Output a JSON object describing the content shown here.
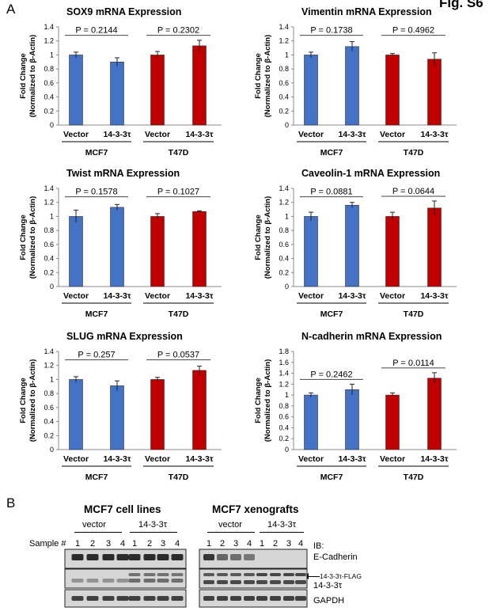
{
  "figure": {
    "panel_a": "A",
    "panel_b": "B",
    "corner_label": "Fig. S6"
  },
  "colors": {
    "mcf7": "#4472C4",
    "t47d": "#C00000"
  },
  "chart_data": [
    {
      "type": "bar",
      "title": "SOX9 mRNA Expression",
      "ylabel": [
        "Fold Change",
        "(Normalized to β-Actin)"
      ],
      "ylim": [
        0,
        1.4
      ],
      "yticks": [
        "0",
        "0.2",
        "0.4",
        "0.6",
        "0.8",
        "1",
        "1.2",
        "1.4"
      ],
      "categories": [
        "Vector",
        "14-3-3τ",
        "Vector",
        "14-3-3τ"
      ],
      "groups": [
        "MCF7",
        "T47D"
      ],
      "values": [
        1.0,
        0.9,
        1.0,
        1.13
      ],
      "errors": [
        0.04,
        0.06,
        0.05,
        0.08
      ],
      "pvalues": [
        "P = 0.2144",
        "P = 0.2302"
      ]
    },
    {
      "type": "bar",
      "title": "Vimentin mRNA Expression",
      "ylabel": [
        "Fold Change",
        "(Normalized to β-Actin)"
      ],
      "ylim": [
        0,
        1.4
      ],
      "yticks": [
        "0",
        "0.2",
        "0.4",
        "0.6",
        "0.8",
        "1",
        "1.2",
        "1.4"
      ],
      "categories": [
        "Vector",
        "14-3-3τ",
        "Vector",
        "14-3-3τ"
      ],
      "groups": [
        "MCF7",
        "T47D"
      ],
      "values": [
        1.0,
        1.12,
        1.0,
        0.94
      ],
      "errors": [
        0.04,
        0.07,
        0.02,
        0.09
      ],
      "pvalues": [
        "P = 0.1738",
        "P = 0.4962"
      ]
    },
    {
      "type": "bar",
      "title": "Twist mRNA Expression",
      "ylabel": [
        "Fold Change",
        "(Normalized to β-Actin)"
      ],
      "ylim": [
        0,
        1.4
      ],
      "yticks": [
        "0",
        "0.2",
        "0.4",
        "0.6",
        "0.8",
        "1",
        "1.2",
        "1.4"
      ],
      "categories": [
        "Vector",
        "14-3-3τ",
        "Vector",
        "14-3-3τ"
      ],
      "groups": [
        "MCF7",
        "T47D"
      ],
      "values": [
        1.0,
        1.13,
        1.0,
        1.07
      ],
      "errors": [
        0.09,
        0.04,
        0.04,
        0.01
      ],
      "pvalues": [
        "P = 0.1578",
        "P = 0.1027"
      ]
    },
    {
      "type": "bar",
      "title": "Caveolin-1 mRNA Expression",
      "ylabel": [
        "Fold Change",
        "(Normalized to β-Actin)"
      ],
      "ylim": [
        0,
        1.4
      ],
      "yticks": [
        "0",
        "0.2",
        "0.4",
        "0.6",
        "0.8",
        "1",
        "1.2",
        "1.4"
      ],
      "categories": [
        "Vector",
        "14-3-3τ",
        "Vector",
        "14-3-3τ"
      ],
      "groups": [
        "MCF7",
        "T47D"
      ],
      "values": [
        1.0,
        1.16,
        1.0,
        1.12
      ],
      "errors": [
        0.06,
        0.04,
        0.06,
        0.1
      ],
      "pvalues": [
        "P = 0.0881",
        "P = 0.0644"
      ]
    },
    {
      "type": "bar",
      "title": "SLUG mRNA Expression",
      "ylabel": [
        "Fold Change",
        "(Normalized to β-Actin)"
      ],
      "ylim": [
        0,
        1.4
      ],
      "yticks": [
        "0",
        "0.2",
        "0.4",
        "0.6",
        "0.8",
        "1",
        "1.2",
        "1.4"
      ],
      "categories": [
        "Vector",
        "14-3-3τ",
        "Vector",
        "14-3-3τ"
      ],
      "groups": [
        "MCF7",
        "T47D"
      ],
      "values": [
        1.0,
        0.91,
        1.0,
        1.13
      ],
      "errors": [
        0.04,
        0.07,
        0.03,
        0.06
      ],
      "pvalues": [
        "P = 0.257",
        "P = 0.0537"
      ]
    },
    {
      "type": "bar",
      "title": "N-cadherin mRNA Expression",
      "ylabel": [
        "Fold Change",
        "(Normalized to β-Actin)"
      ],
      "ylim": [
        0,
        1.8
      ],
      "yticks": [
        "0",
        "0.2",
        "0.4",
        "0.6",
        "0.8",
        "1",
        "1.2",
        "1.4",
        "1.6",
        "1.8"
      ],
      "categories": [
        "Vector",
        "14-3-3τ",
        "Vector",
        "14-3-3τ"
      ],
      "groups": [
        "MCF7",
        "T47D"
      ],
      "values": [
        1.0,
        1.1,
        1.0,
        1.31
      ],
      "errors": [
        0.04,
        0.1,
        0.04,
        0.1
      ],
      "pvalues": [
        "P = 0.2462",
        "P = 0.0114"
      ]
    }
  ],
  "western": {
    "left_title": "MCF7 cell lines",
    "right_title": "MCF7 xenografts",
    "group_vector": "vector",
    "group_1433": "14-3-3τ",
    "sample_label": "Sample #",
    "lanes": [
      "1",
      "2",
      "3",
      "4",
      "1",
      "2",
      "3",
      "4"
    ],
    "ib_label": "IB:",
    "bands": [
      "E-Cadherin",
      "14-3-3τ-FLAG",
      "14-3-3τ",
      "GAPDH"
    ]
  }
}
